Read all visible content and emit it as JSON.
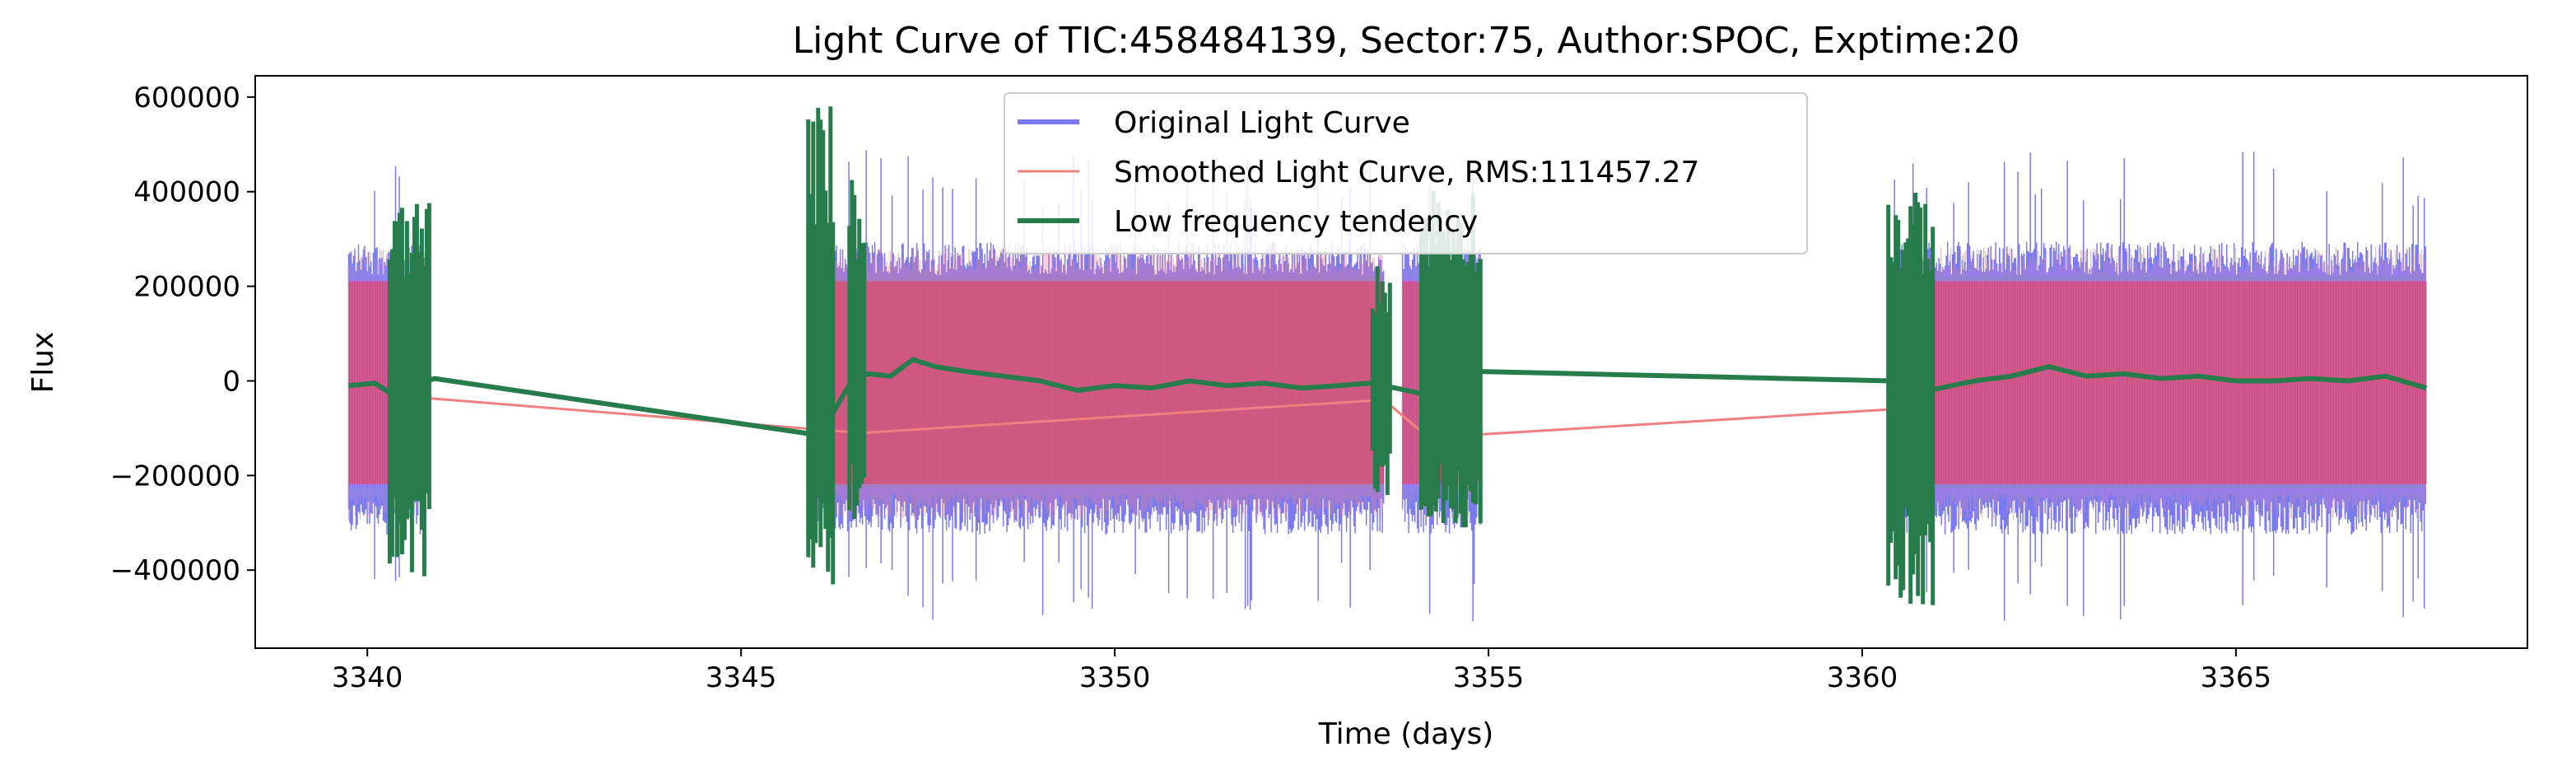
{
  "chart_data": {
    "type": "line",
    "title": "Light Curve of TIC:458484139, Sector:75, Author:SPOC, Exptime:20",
    "xlabel": "Time (days)",
    "ylabel": "Flux",
    "xlim": [
      3338.5,
      3368.9
    ],
    "ylim": [
      -565000,
      645000
    ],
    "xticks": [
      3340,
      3345,
      3350,
      3355,
      3360,
      3365
    ],
    "yticks": [
      -400000,
      -200000,
      0,
      200000,
      400000,
      600000
    ],
    "xtick_labels": [
      "3340",
      "3345",
      "3350",
      "3355",
      "3360",
      "3365"
    ],
    "ytick_labels": [
      "−400000",
      "−200000",
      "0",
      "200000",
      "400000",
      "600000"
    ],
    "grid": false,
    "legend_position": "top-center",
    "segments": [
      {
        "start": 3339.75,
        "end": 3340.78
      },
      {
        "start": 3345.98,
        "end": 3353.6
      },
      {
        "start": 3353.85,
        "end": 3354.9
      },
      {
        "start": 3360.35,
        "end": 3367.55
      }
    ],
    "series": [
      {
        "name": "Original Light Curve",
        "color": "#7b7bef",
        "style": "dense-oscillation",
        "envelope": [
          -310000,
          280000
        ],
        "extremes": [
          -510000,
          490000
        ]
      },
      {
        "name": "Smoothed Light Curve, RMS:111457.27",
        "color": "#f08080",
        "fill_color": "#c23e7a",
        "style": "dense-oscillation",
        "envelope": [
          -280000,
          270000
        ],
        "gap_bridge": {
          "x": [
            3340.3,
            3346.6,
            3353.6,
            3354.2,
            3360.9
          ],
          "y": [
            -30000,
            -110000,
            -40000,
            -120000,
            -55000
          ]
        }
      },
      {
        "name": "Low frequency tendency",
        "color": "#267d4b",
        "x": [
          3339.75,
          3340.1,
          3340.3,
          3340.9,
          3346.05,
          3346.5,
          3346.7,
          3347.0,
          3347.3,
          3347.6,
          3348.0,
          3348.5,
          3349.0,
          3349.5,
          3350.0,
          3350.5,
          3351.0,
          3351.5,
          3352.0,
          3352.5,
          3353.0,
          3353.4,
          3353.6,
          3354.2,
          3354.85,
          3360.4,
          3360.9,
          3361.5,
          3362.0,
          3362.5,
          3363.0,
          3363.5,
          3364.0,
          3364.5,
          3365.0,
          3365.5,
          3366.0,
          3366.5,
          3367.0,
          3367.55
        ],
        "y": [
          -10000,
          -5000,
          -25000,
          5000,
          -115000,
          5000,
          15000,
          10000,
          45000,
          30000,
          20000,
          10000,
          0,
          -20000,
          -10000,
          -15000,
          0,
          -10000,
          -5000,
          -15000,
          -10000,
          -5000,
          -10000,
          -30000,
          20000,
          0,
          -20000,
          0,
          10000,
          30000,
          10000,
          15000,
          5000,
          10000,
          0,
          0,
          5000,
          0,
          10000,
          -15000
        ],
        "bursts": [
          {
            "x0": 3340.3,
            "x1": 3340.85,
            "y0": -430000,
            "y1": 390000
          },
          {
            "x0": 3345.9,
            "x1": 3346.25,
            "y0": -450000,
            "y1": 590000
          },
          {
            "x0": 3346.45,
            "x1": 3346.65,
            "y0": -300000,
            "y1": 450000
          },
          {
            "x0": 3353.45,
            "x1": 3353.7,
            "y0": -250000,
            "y1": 250000
          },
          {
            "x0": 3354.1,
            "x1": 3354.9,
            "y0": -310000,
            "y1": 420000
          },
          {
            "x0": 3360.35,
            "x1": 3360.95,
            "y0": -480000,
            "y1": 400000
          }
        ]
      }
    ]
  }
}
